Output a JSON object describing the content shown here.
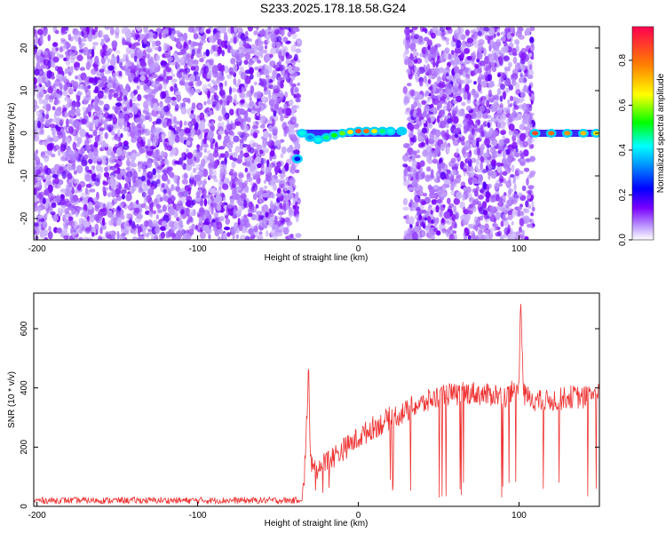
{
  "title": "S233.2025.178.18.58.G24",
  "chart_data": [
    {
      "type": "heatmap",
      "xlabel": "Height of straight line (km)",
      "ylabel": "Frequency (Hz)",
      "xlim": [
        -202,
        150
      ],
      "ylim": [
        -25,
        25
      ],
      "xticks": [
        -200,
        -100,
        0,
        100
      ],
      "yticks": [
        -20,
        -10,
        0,
        10,
        20
      ],
      "colorbar": {
        "label": "Normalized spectral amplitude",
        "ticks": [
          0.0,
          0.2,
          0.4,
          0.6,
          0.8
        ],
        "range": [
          0,
          0.95
        ],
        "colormap": [
          "#ffffff",
          "#7a00ff",
          "#0000ff",
          "#00ffff",
          "#00ff00",
          "#ffff00",
          "#ff8000",
          "#ff0050"
        ]
      },
      "noise_regions": [
        {
          "x_from": -202,
          "x_to": -37
        },
        {
          "x_from": 29,
          "x_to": 109
        }
      ],
      "signal_track": [
        {
          "x": -38,
          "freq": -6,
          "amp": 0.25
        },
        {
          "x": -35,
          "freq": 0,
          "amp": 0.45
        },
        {
          "x": -30,
          "freq": -1,
          "amp": 0.35
        },
        {
          "x": -25,
          "freq": -1.5,
          "amp": 0.45
        },
        {
          "x": -20,
          "freq": -1,
          "amp": 0.5
        },
        {
          "x": -15,
          "freq": -0.5,
          "amp": 0.55
        },
        {
          "x": -10,
          "freq": 0,
          "amp": 0.6
        },
        {
          "x": -5,
          "freq": 0.3,
          "amp": 0.7
        },
        {
          "x": 0,
          "freq": 0.5,
          "amp": 0.9
        },
        {
          "x": 5,
          "freq": 0.5,
          "amp": 0.85
        },
        {
          "x": 10,
          "freq": 0.5,
          "amp": 0.7
        },
        {
          "x": 15,
          "freq": 0.5,
          "amp": 0.5
        },
        {
          "x": 20,
          "freq": 0.5,
          "amp": 0.45
        },
        {
          "x": 27,
          "freq": 0.5,
          "amp": 0.4
        },
        {
          "x": 110,
          "freq": 0,
          "amp": 0.9
        },
        {
          "x": 120,
          "freq": 0,
          "amp": 0.85
        },
        {
          "x": 130,
          "freq": 0,
          "amp": 0.8
        },
        {
          "x": 140,
          "freq": 0,
          "amp": 0.75
        },
        {
          "x": 148,
          "freq": 0,
          "amp": 0.7
        }
      ],
      "signal_segments": [
        {
          "x_from": -34,
          "x_to": 27,
          "freq": 0
        },
        {
          "x_from": 108,
          "x_to": 150,
          "freq": 0
        }
      ]
    },
    {
      "type": "line",
      "xlabel": "Height of straight line (km)",
      "ylabel": "SNR (10 * v/v)",
      "xlim": [
        -202,
        150
      ],
      "ylim": [
        0,
        720
      ],
      "xticks": [
        -200,
        -100,
        0,
        100
      ],
      "yticks": [
        0,
        200,
        400,
        600
      ],
      "line_color": "#ee3333",
      "series": [
        {
          "x": [
            -202,
            -180,
            -160,
            -140,
            -120,
            -100,
            -80,
            -60,
            -40,
            -35,
            -34,
            -32,
            -31,
            -30,
            -28,
            -25,
            -20,
            -15,
            -10,
            -5,
            0,
            5,
            10,
            15,
            20,
            25,
            30,
            35,
            40,
            45,
            50,
            55,
            60,
            65,
            70,
            75,
            80,
            85,
            90,
            95,
            100,
            101,
            102,
            103,
            105,
            110,
            115,
            120,
            125,
            130,
            135,
            140,
            145,
            150
          ],
          "values": [
            20,
            20,
            20,
            20,
            20,
            20,
            20,
            20,
            20,
            25,
            60,
            300,
            490,
            150,
            140,
            130,
            150,
            170,
            190,
            210,
            230,
            250,
            270,
            280,
            300,
            310,
            320,
            340,
            345,
            360,
            370,
            380,
            375,
            380,
            385,
            380,
            375,
            380,
            370,
            380,
            420,
            730,
            500,
            380,
            370,
            360,
            350,
            360,
            360,
            370,
            370,
            365,
            380,
            390
          ]
        }
      ]
    }
  ]
}
